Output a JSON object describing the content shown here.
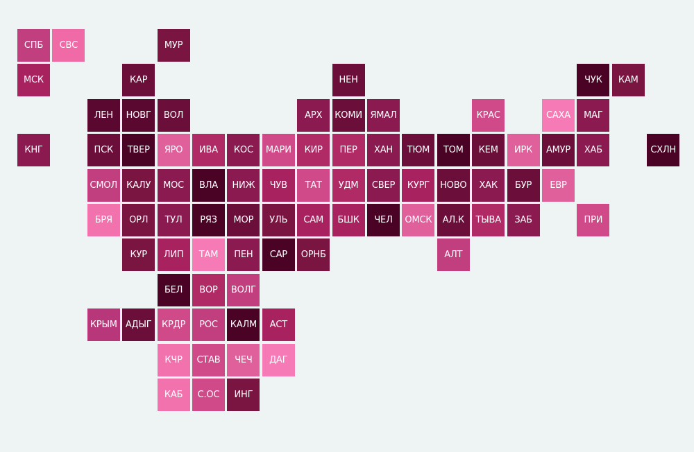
{
  "tiles": {
    "rows": [
      [
        {
          "label": "СПБ",
          "color": "#c23f7f"
        },
        {
          "label": "СВС",
          "color": "#f06aa8"
        },
        null,
        null,
        {
          "label": "МУР",
          "color": "#7a1440"
        }
      ],
      [
        {
          "label": "МСК",
          "color": "#a8225f"
        },
        null,
        null,
        {
          "label": "КАР",
          "color": "#6b0f3a"
        },
        null,
        null,
        null,
        null,
        null,
        {
          "label": "НЕН",
          "color": "#6b0f3a"
        },
        null,
        null,
        null,
        null,
        null,
        null,
        {
          "label": "ЧУК",
          "color": "#4a0325"
        },
        {
          "label": "КАМ",
          "color": "#7a1440"
        }
      ],
      [
        null,
        null,
        {
          "label": "ЛЕН",
          "color": "#5a0830"
        },
        {
          "label": "НОВГ",
          "color": "#5a0830"
        },
        {
          "label": "ВОЛ",
          "color": "#6b0f3a"
        },
        null,
        null,
        null,
        {
          "label": "АРХ",
          "color": "#8a1a4f"
        },
        {
          "label": "КОМИ",
          "color": "#6b0f3a"
        },
        {
          "label": "ЯМАЛ",
          "color": "#8a1a4f"
        },
        null,
        null,
        {
          "label": "КРАС",
          "color": "#d04a89"
        },
        null,
        {
          "label": "САХА",
          "color": "#f57ab5"
        },
        {
          "label": "МАГ",
          "color": "#8a1a4f"
        }
      ],
      [
        {
          "label": "КНГ",
          "color": "#8a1a4f"
        },
        null,
        {
          "label": "ПСК",
          "color": "#6b0f3a"
        },
        {
          "label": "ТВЕР",
          "color": "#4a0325"
        },
        {
          "label": "ЯРО",
          "color": "#e0609c"
        },
        {
          "label": "ИВА",
          "color": "#b02a66"
        },
        {
          "label": "КОС",
          "color": "#8a1a4f"
        },
        {
          "label": "МАРИ",
          "color": "#d04a89"
        },
        {
          "label": "КИР",
          "color": "#b02a66"
        },
        {
          "label": "ПЕР",
          "color": "#b02a66"
        },
        {
          "label": "ХАН",
          "color": "#8a1a4f"
        },
        {
          "label": "ТЮМ",
          "color": "#6b0f3a"
        },
        {
          "label": "ТОМ",
          "color": "#4a0325"
        },
        {
          "label": "КЕМ",
          "color": "#6b0f3a"
        },
        {
          "label": "ИРК",
          "color": "#e0609c"
        },
        {
          "label": "АМУР",
          "color": "#6b0f3a"
        },
        {
          "label": "ХАБ",
          "color": "#8a1a4f"
        },
        null,
        {
          "label": "СХЛН",
          "color": "#4a0325"
        }
      ],
      [
        null,
        null,
        {
          "label": "СМОЛ",
          "color": "#c23f7f"
        },
        {
          "label": "КАЛУ",
          "color": "#7a1440"
        },
        {
          "label": "МОС",
          "color": "#8a1a4f"
        },
        {
          "label": "ВЛА",
          "color": "#4a0325"
        },
        {
          "label": "НИЖ",
          "color": "#8a1a4f"
        },
        {
          "label": "ЧУВ",
          "color": "#a8225f"
        },
        {
          "label": "ТАТ",
          "color": "#d04a89"
        },
        {
          "label": "УДМ",
          "color": "#b02a66"
        },
        {
          "label": "СВЕР",
          "color": "#8a1a4f"
        },
        {
          "label": "КУРГ",
          "color": "#a8225f"
        },
        {
          "label": "НОВО",
          "color": "#6b0f3a"
        },
        {
          "label": "ХАК",
          "color": "#8a1a4f"
        },
        {
          "label": "БУР",
          "color": "#6b0f3a"
        },
        {
          "label": "ЕВР",
          "color": "#e0609c"
        }
      ],
      [
        null,
        null,
        {
          "label": "БРЯ",
          "color": "#f272ae"
        },
        {
          "label": "ОРЛ",
          "color": "#7a1440"
        },
        {
          "label": "ТУЛ",
          "color": "#8a1a4f"
        },
        {
          "label": "РЯЗ",
          "color": "#4a0325"
        },
        {
          "label": "МОР",
          "color": "#6b0f3a"
        },
        {
          "label": "УЛЬ",
          "color": "#7a1440"
        },
        {
          "label": "САМ",
          "color": "#a8225f"
        },
        {
          "label": "БШК",
          "color": "#a8225f"
        },
        {
          "label": "ЧЕЛ",
          "color": "#4a0325"
        },
        {
          "label": "ОМСК",
          "color": "#e0609c"
        },
        {
          "label": "АЛ.К",
          "color": "#6b0f3a"
        },
        {
          "label": "ТЫВА",
          "color": "#b02a66"
        },
        {
          "label": "ЗАБ",
          "color": "#8a1a4f"
        },
        null,
        {
          "label": "ПРИ",
          "color": "#d04a89"
        }
      ],
      [
        null,
        null,
        null,
        {
          "label": "КУР",
          "color": "#7a1440"
        },
        {
          "label": "ЛИП",
          "color": "#a8225f"
        },
        {
          "label": "ТАМ",
          "color": "#f57ab5"
        },
        {
          "label": "ПЕН",
          "color": "#8a1a4f"
        },
        {
          "label": "САР",
          "color": "#4a0325"
        },
        {
          "label": "ОРНБ",
          "color": "#7a1440"
        },
        null,
        null,
        null,
        {
          "label": "АЛТ",
          "color": "#c23f7f"
        }
      ],
      [
        null,
        null,
        null,
        null,
        {
          "label": "БЕЛ",
          "color": "#4a0325"
        },
        {
          "label": "ВОР",
          "color": "#b02a66"
        },
        {
          "label": "ВОЛГ",
          "color": "#c23f7f"
        }
      ],
      [
        null,
        null,
        {
          "label": "КРЫМ",
          "color": "#b8377a"
        },
        {
          "label": "АДЫГ",
          "color": "#6b0f3a"
        },
        {
          "label": "КРДР",
          "color": "#d04a89"
        },
        {
          "label": "РОС",
          "color": "#c23f7f"
        },
        {
          "label": "КАЛМ",
          "color": "#4a0325"
        },
        {
          "label": "АСТ",
          "color": "#a8225f"
        }
      ],
      [
        null,
        null,
        null,
        null,
        {
          "label": "КЧР",
          "color": "#f272ae"
        },
        {
          "label": "СТАВ",
          "color": "#d04a89"
        },
        {
          "label": "ЧЕЧ",
          "color": "#e0609c"
        },
        {
          "label": "ДАГ",
          "color": "#f57ab5"
        }
      ],
      [
        null,
        null,
        null,
        null,
        {
          "label": "КАБ",
          "color": "#f272ae"
        },
        {
          "label": "С.ОС",
          "color": "#d04a89"
        },
        {
          "label": "ИНГ",
          "color": "#7a1440"
        }
      ]
    ]
  }
}
